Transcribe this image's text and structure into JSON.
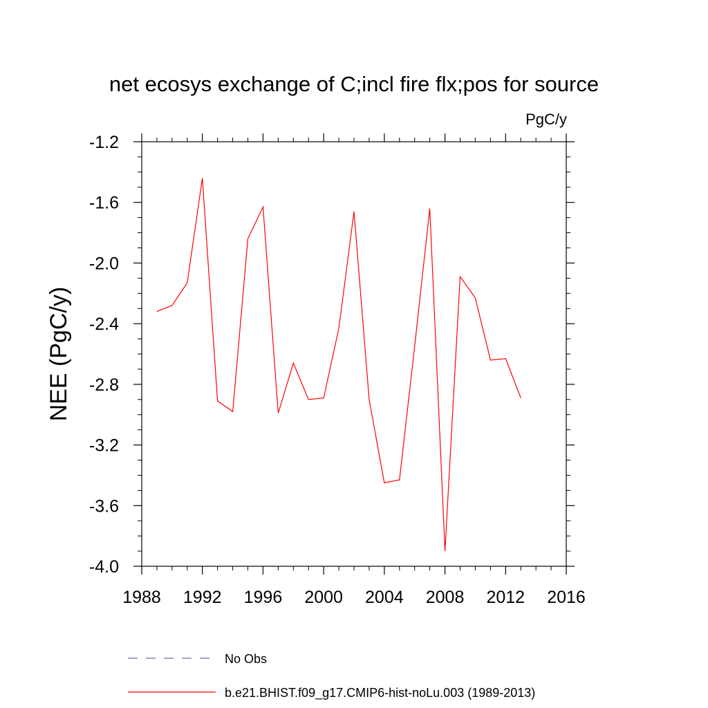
{
  "chart_data": {
    "type": "line",
    "title": "net ecosys exchange of C;incl fire flx;pos for source",
    "units": "PgC/y",
    "xlabel": "",
    "ylabel": "NEE  (PgC/y)",
    "xlim": [
      1988,
      2016
    ],
    "ylim": [
      -4.0,
      -1.2
    ],
    "x_ticks": [
      1988,
      1992,
      1996,
      2000,
      2004,
      2008,
      2012,
      2016
    ],
    "x_tick_labels": [
      "1988",
      "1992",
      "1996",
      "2000",
      "2004",
      "2008",
      "2012",
      "2016"
    ],
    "y_ticks": [
      -4.0,
      -3.6,
      -3.2,
      -2.8,
      -2.4,
      -2.0,
      -1.6,
      -1.2
    ],
    "y_tick_labels": [
      "-4.0",
      "-3.6",
      "-3.2",
      "-2.8",
      "-2.4",
      "-2.0",
      "-1.6",
      "-1.2"
    ],
    "grid": false,
    "legend_position": "bottom",
    "series": [
      {
        "name": "b.e21.BHIST.f09_g17.CMIP6-hist-noLu.003 (1989-2013)",
        "color": "#ff0000",
        "style": "solid",
        "x": [
          1989,
          1990,
          1991,
          1992,
          1993,
          1994,
          1995,
          1996,
          1997,
          1998,
          1999,
          2000,
          2001,
          2002,
          2003,
          2004,
          2005,
          2006,
          2007,
          2008,
          2009,
          2010,
          2011,
          2012,
          2013
        ],
        "values": [
          -2.32,
          -2.28,
          -2.13,
          -1.44,
          -2.91,
          -2.98,
          -1.84,
          -1.63,
          -2.99,
          -2.66,
          -2.9,
          -2.89,
          -2.43,
          -1.66,
          -2.9,
          -3.45,
          -3.43,
          -2.55,
          -1.64,
          -3.9,
          -2.09,
          -2.23,
          -2.64,
          -2.63,
          -2.89
        ]
      }
    ],
    "legend": [
      {
        "label": "No Obs",
        "color": "#7b68b5",
        "style": "dashed"
      },
      {
        "label": "b.e21.BHIST.f09_g17.CMIP6-hist-noLu.003 (1989-2013)",
        "color": "#ff0000",
        "style": "solid"
      }
    ]
  }
}
